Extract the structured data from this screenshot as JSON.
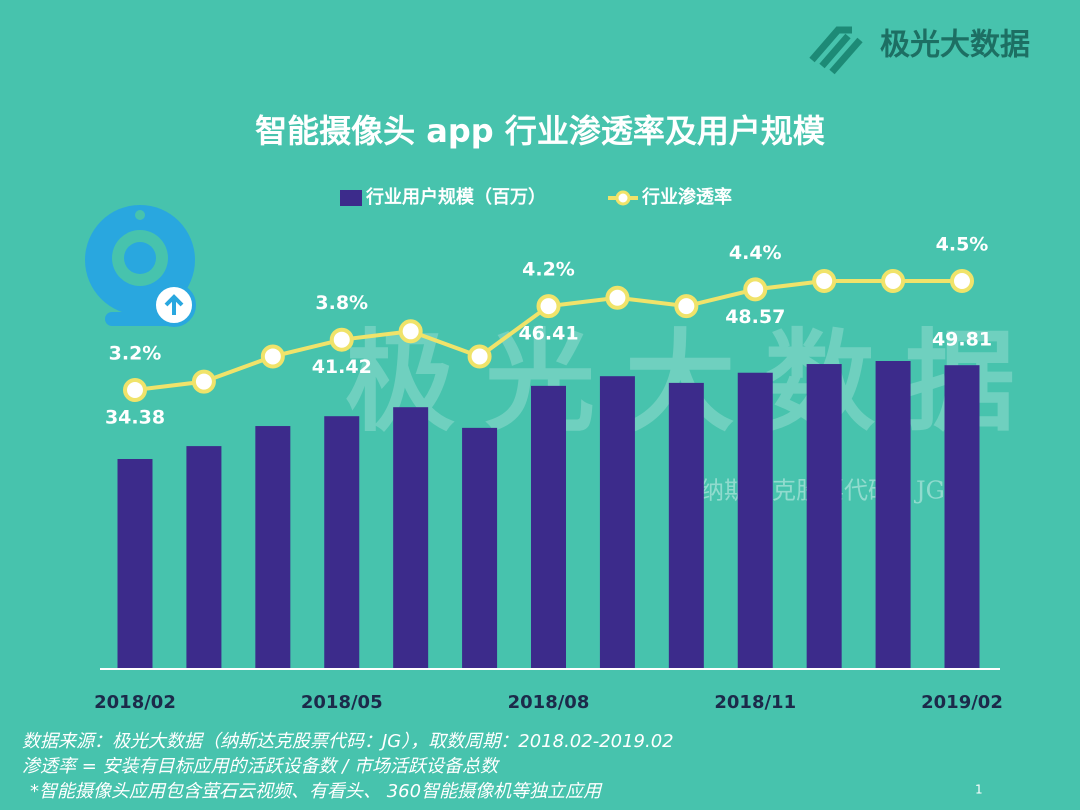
{
  "logo": "极光大数据",
  "watermark": "极光大数据",
  "watermark_sub": "纳斯达克股票代码：JG",
  "chart_data": {
    "type": "bar_line",
    "title": "智能摄像头 app 行业渗透率及用户规模",
    "categories": [
      "2018/02",
      null,
      null,
      "2018/05",
      null,
      null,
      "2018/08",
      null,
      null,
      "2018/11",
      null,
      null,
      "2019/02"
    ],
    "series": [
      {
        "name": "行业用户规模（百万）",
        "color": "#3c2b8b",
        "values": [
          34.38,
          36.5,
          39.8,
          41.42,
          42.9,
          39.5,
          46.41,
          48.0,
          46.9,
          48.57,
          50.0,
          50.5,
          49.81
        ],
        "value_labels": [
          "34.38",
          null,
          null,
          "41.42",
          null,
          null,
          "46.41",
          null,
          null,
          "48.57",
          null,
          null,
          "49.81"
        ]
      },
      {
        "name": "行业渗透率",
        "color": "#f0e36a",
        "axis": "y2",
        "values": [
          3.2,
          3.3,
          3.6,
          3.8,
          3.9,
          3.6,
          4.2,
          4.3,
          4.2,
          4.4,
          4.5,
          4.5,
          4.5
        ],
        "value_labels": [
          "3.2%",
          null,
          null,
          "3.8%",
          null,
          null,
          "4.2%",
          null,
          null,
          "4.4%",
          null,
          null,
          "4.5%"
        ]
      }
    ]
  },
  "notes": [
    "数据来源：极光大数据（纳斯达克股票代码：JG），取数周期：2018.02-2019.02",
    "渗透率 = 安装有目标应用的活跃设备数 / 市场活跃设备总数",
    "*智能摄像头应用包含萤石云视频、有看头、 360智能摄像机等独立应用"
  ],
  "page_number": "1"
}
